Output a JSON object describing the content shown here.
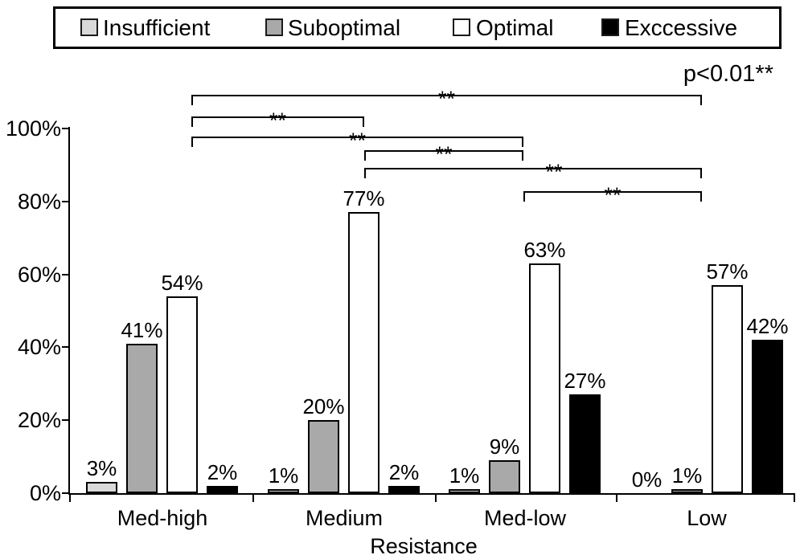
{
  "legend": {
    "items": [
      {
        "label": "Insufficient",
        "color": "#d9d9d9"
      },
      {
        "label": "Suboptimal",
        "color": "#a9a9a9"
      },
      {
        "label": "Optimal",
        "color": "#ffffff"
      },
      {
        "label": "Exccessive",
        "color": "#000000"
      }
    ]
  },
  "annotations": {
    "p_value": "p<0.01**"
  },
  "chart_data": {
    "type": "bar",
    "title": "",
    "xlabel": "Resistance",
    "ylabel": "",
    "categories": [
      "Med-high",
      "Medium",
      "Med-low",
      "Low"
    ],
    "series": [
      {
        "name": "Insufficient",
        "color": "#d9d9d9",
        "values": [
          3,
          1,
          1,
          0
        ]
      },
      {
        "name": "Suboptimal",
        "color": "#a9a9a9",
        "values": [
          41,
          20,
          9,
          1
        ]
      },
      {
        "name": "Optimal",
        "color": "#ffffff",
        "values": [
          54,
          77,
          63,
          57
        ]
      },
      {
        "name": "Exccessive",
        "color": "#000000",
        "values": [
          2,
          2,
          27,
          42
        ]
      }
    ],
    "value_suffix": "%",
    "ylim": [
      0,
      100
    ],
    "y_ticks": [
      "0%",
      "20%",
      "40%",
      "60%",
      "80%",
      "100%"
    ],
    "grid": false,
    "legend_position": "top",
    "significance_brackets": [
      {
        "pair": [
          "Med-high",
          "Low"
        ],
        "label": "**"
      },
      {
        "pair": [
          "Med-high",
          "Medium"
        ],
        "label": "**"
      },
      {
        "pair": [
          "Med-high",
          "Med-low"
        ],
        "label": "**"
      },
      {
        "pair": [
          "Medium",
          "Med-low"
        ],
        "label": "**"
      },
      {
        "pair": [
          "Medium",
          "Low"
        ],
        "label": "**"
      },
      {
        "pair": [
          "Med-low",
          "Low"
        ],
        "label": "**"
      }
    ]
  }
}
